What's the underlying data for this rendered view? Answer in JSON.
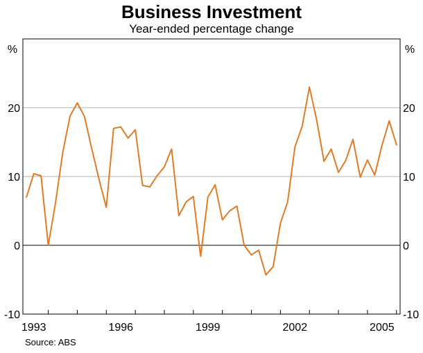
{
  "header": {
    "title": "Business Investment",
    "subtitle": "Year-ended percentage change"
  },
  "footer": {
    "source": "Source: ABS"
  },
  "chart_data": {
    "type": "line",
    "title": "Business Investment",
    "subtitle": "Year-ended percentage change",
    "xlabel": "",
    "ylabel": "%",
    "ylabel_right": "%",
    "ylim": [
      -10,
      30
    ],
    "yticks": [
      -10,
      0,
      10,
      20
    ],
    "ytick_labels": [
      "-10",
      "0",
      "10",
      "20"
    ],
    "x_range": [
      1992.625,
      2005.625
    ],
    "xticks": [
      1993,
      1996,
      1999,
      2002,
      2005
    ],
    "xtick_labels": [
      "1993",
      "1996",
      "1999",
      "2002",
      "2005"
    ],
    "grid": true,
    "colors": {
      "series": "#e07b24",
      "grid": "#b0b0b0",
      "axis": "#000000"
    },
    "series": [
      {
        "x": [
          1992.75,
          1993.0,
          1993.25,
          1993.5,
          1993.75,
          1994.0,
          1994.25,
          1994.5,
          1994.75,
          1995.0,
          1995.25,
          1995.5,
          1995.75,
          1996.0,
          1996.25,
          1996.5,
          1996.75,
          1997.0,
          1997.25,
          1997.5,
          1997.75,
          1998.0,
          1998.25,
          1998.5,
          1998.75,
          1999.0,
          1999.25,
          1999.5,
          1999.75,
          2000.0,
          2000.25,
          2000.5,
          2000.75,
          2001.0,
          2001.25,
          2001.5,
          2001.75,
          2002.0,
          2002.25,
          2002.5,
          2002.75,
          2003.0,
          2003.25,
          2003.5,
          2003.75,
          2004.0,
          2004.25,
          2004.5,
          2004.75,
          2005.0,
          2005.25,
          2005.5
        ],
        "values": [
          7.0,
          10.4,
          10.1,
          0.0,
          6.2,
          13.5,
          18.8,
          20.7,
          18.7,
          14.0,
          9.6,
          5.5,
          17.0,
          17.2,
          15.6,
          16.8,
          8.7,
          8.5,
          10.1,
          11.4,
          14.0,
          4.3,
          6.3,
          7.1,
          -1.6,
          7.0,
          8.8,
          3.7,
          5.0,
          5.7,
          0.0,
          -1.4,
          -0.7,
          -4.3,
          -3.1,
          3.2,
          6.3,
          14.3,
          17.3,
          23.0,
          18.2,
          12.2,
          14.0,
          10.6,
          12.3,
          15.4,
          9.9,
          12.4,
          10.2,
          14.5,
          18.1,
          14.6
        ]
      }
    ]
  }
}
